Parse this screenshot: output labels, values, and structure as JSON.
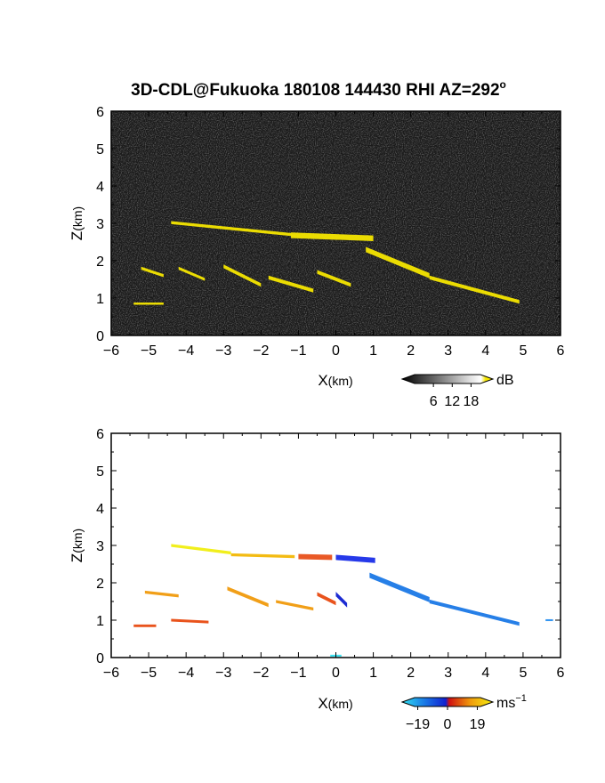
{
  "chart_data": [
    {
      "type": "heatmap",
      "title": "3D-CDL@Fukuoka 180108 144430 RHI AZ=292",
      "title_superscript": "o",
      "xlabel_main": "X",
      "xlabel_unit": "(km)",
      "ylabel_main": "Z",
      "ylabel_unit": "(km)",
      "xlim": [
        -6,
        6
      ],
      "ylim": [
        0,
        6
      ],
      "xticks": [
        "−6",
        "−5",
        "−4",
        "−3",
        "−2",
        "−1",
        "0",
        "1",
        "2",
        "3",
        "4",
        "5",
        "6"
      ],
      "yticks": [
        "0",
        "1",
        "2",
        "3",
        "4",
        "5",
        "6"
      ],
      "background": "#1a1a1a",
      "colorbar": {
        "unit": "dB",
        "ticks": [
          "6",
          "12",
          "18"
        ],
        "range": [
          0,
          21
        ],
        "tick_values": [
          6,
          12,
          18
        ]
      },
      "features": [
        {
          "name": "upper layer",
          "segments": [
            [
              -4.4,
              3.02,
              -1.2,
              2.7,
              0.08
            ],
            [
              -1.2,
              2.68,
              1.0,
              2.6,
              0.15
            ]
          ],
          "color": "#f5e600"
        },
        {
          "name": "descending layer",
          "segments": [
            [
              0.8,
              2.3,
              2.5,
              1.6,
              0.14
            ],
            [
              2.5,
              1.55,
              4.9,
              0.9,
              0.1
            ]
          ],
          "color": "#f5e600"
        },
        {
          "name": "lower streaks",
          "segments": [
            [
              -3.0,
              1.85,
              -2.0,
              1.35,
              0.1
            ],
            [
              -1.8,
              1.55,
              -0.6,
              1.2,
              0.1
            ],
            [
              -0.5,
              1.7,
              0.4,
              1.35,
              0.1
            ],
            [
              -4.2,
              1.8,
              -3.5,
              1.5,
              0.08
            ],
            [
              -5.2,
              1.8,
              -4.6,
              1.6,
              0.08
            ],
            [
              -5.4,
              0.85,
              -4.6,
              0.85,
              0.06
            ]
          ],
          "color": "#f5e600"
        }
      ]
    },
    {
      "type": "heatmap",
      "xlabel_main": "X",
      "xlabel_unit": "(km)",
      "ylabel_main": "Z",
      "ylabel_unit": "(km)",
      "xlim": [
        -6,
        6
      ],
      "ylim": [
        0,
        6
      ],
      "xticks": [
        "−6",
        "−5",
        "−4",
        "−3",
        "−2",
        "−1",
        "0",
        "1",
        "2",
        "3",
        "4",
        "5",
        "6"
      ],
      "yticks": [
        "0",
        "1",
        "2",
        "3",
        "4",
        "5",
        "6"
      ],
      "background": "#ffffff",
      "colorbar": {
        "unit": "ms",
        "unit_superscript": "−1",
        "ticks": [
          "−19",
          "0",
          "19"
        ],
        "range": [
          -21,
          21
        ],
        "tick_values": [
          -19,
          0,
          19
        ]
      },
      "features": [
        {
          "name": "upper layer west",
          "segments": [
            [
              -4.4,
              3.0,
              -2.8,
              2.8,
              0.08
            ]
          ],
          "color": "#f0ee10"
        },
        {
          "name": "upper layer mid",
          "segments": [
            [
              -2.8,
              2.75,
              -1.1,
              2.7,
              0.08
            ]
          ],
          "color": "#f2b705"
        },
        {
          "name": "upper layer east",
          "segments": [
            [
              -1.0,
              2.7,
              -0.1,
              2.68,
              0.14
            ]
          ],
          "color": "#e8501a"
        },
        {
          "name": "upper layer approaching",
          "segments": [
            [
              0.0,
              2.68,
              1.05,
              2.6,
              0.14
            ]
          ],
          "color": "#1a2ee8"
        },
        {
          "name": "descending layer",
          "segments": [
            [
              0.9,
              2.2,
              2.5,
              1.55,
              0.14
            ],
            [
              2.5,
              1.5,
              4.9,
              0.9,
              0.1
            ]
          ],
          "color": "#1a78e6"
        },
        {
          "name": "lower streaks receding",
          "segments": [
            [
              -2.9,
              1.85,
              -1.8,
              1.4,
              0.1
            ],
            [
              -5.1,
              1.75,
              -4.2,
              1.65,
              0.08
            ],
            [
              -1.6,
              1.5,
              -0.6,
              1.3,
              0.08
            ]
          ],
          "color": "#f09a0c"
        },
        {
          "name": "lower streaks near",
          "segments": [
            [
              -0.5,
              1.7,
              0.0,
              1.45,
              0.1
            ],
            [
              -5.4,
              0.85,
              -4.8,
              0.85,
              0.07
            ],
            [
              -4.4,
              1.0,
              -3.4,
              0.95,
              0.07
            ]
          ],
          "color": "#e84a10"
        },
        {
          "name": "near-origin approaching",
          "segments": [
            [
              0.0,
              1.7,
              0.3,
              1.4,
              0.12
            ]
          ],
          "color": "#1020d0"
        },
        {
          "name": "far echo",
          "segments": [
            [
              5.6,
              1.0,
              5.8,
              1.0,
              0.05
            ]
          ],
          "color": "#2a90f0"
        },
        {
          "name": "ground clutter",
          "segments": [
            [
              -0.15,
              0.05,
              0.15,
              0.05,
              0.05
            ]
          ],
          "color": "#30e0f0"
        }
      ]
    }
  ]
}
